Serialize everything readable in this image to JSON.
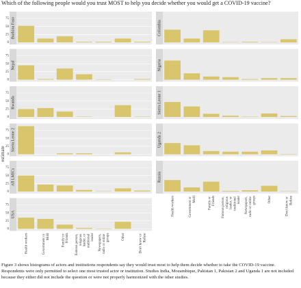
{
  "title": "Which of the following people would you trust MOST to help you decide whether you would get a COVID-19 vaccine?",
  "y_label": "estimate",
  "caption": "Figure 3 shows histograms of actors and institutions respondents say they would trust most to help them decide whether to take the COVID-19 vaccine. Respondents were only permitted to select one most trusted actor or institution. Studies India, Mozambique, Pakistan 1, Pakistan 2 and Uganda 1 are not included because they either did not include the question or were not properly harmonized with the other studies.",
  "chart_data": [
    {
      "type": "bar",
      "title": "Burkina Faso",
      "values": [
        52,
        12,
        19,
        2,
        2,
        12,
        2
      ],
      "color": "#d8c56c",
      "ylim": [
        0,
        90
      ],
      "yticks": [
        0,
        25,
        50,
        75
      ]
    },
    {
      "type": "bar",
      "title": "Colombia",
      "values": [
        40,
        12,
        38,
        1,
        2,
        1,
        10
      ],
      "color": "#d8c56c",
      "ylim": [
        0,
        90
      ]
    },
    {
      "type": "bar",
      "title": "Nepal",
      "values": [
        45,
        2,
        35,
        17,
        1,
        0,
        2
      ],
      "color": "#d8c56c",
      "ylim": [
        0,
        90
      ],
      "yticks": [
        0,
        25,
        50,
        75
      ]
    },
    {
      "type": "bar",
      "title": "Nigeria",
      "values": [
        60,
        20,
        10,
        8,
        2,
        5,
        5
      ],
      "color": "#d8c56c",
      "ylim": [
        0,
        90
      ]
    },
    {
      "type": "bar",
      "title": "Rwanda",
      "values": [
        25,
        28,
        17,
        1,
        0,
        37,
        1
      ],
      "color": "#d8c56c",
      "ylim": [
        0,
        90
      ],
      "yticks": [
        0,
        25,
        50,
        75
      ]
    },
    {
      "type": "bar",
      "title": "Sierra Leone 1",
      "values": [
        47,
        33,
        10,
        4,
        1,
        11,
        3
      ],
      "color": "#d8c56c",
      "ylim": [
        0,
        90
      ]
    },
    {
      "type": "bar",
      "title": "Sierra Leone 2",
      "values": [
        88,
        0,
        3,
        3,
        0,
        6,
        0
      ],
      "color": "#d8c56c",
      "ylim": [
        0,
        90
      ],
      "yticks": [
        0,
        25,
        50,
        75
      ]
    },
    {
      "type": "bar",
      "title": "Uganda 2",
      "values": [
        35,
        28,
        10,
        8,
        8,
        12,
        1
      ],
      "color": "#d8c56c",
      "ylim": [
        0,
        90
      ]
    },
    {
      "type": "bar",
      "title": "All LMICs",
      "values": [
        50,
        22,
        19,
        5,
        1,
        10,
        3
      ],
      "color": "#d8c56c",
      "ylim": [
        0,
        90
      ],
      "yticks": [
        0,
        25,
        50,
        75
      ]
    },
    {
      "type": "bar",
      "title": "Russia",
      "categories": [
        "Health workers",
        "Government or MoH",
        "Family or Friends",
        "Famous person, religious leader, or traditional leader",
        "Newspapers, radio or online groups",
        "Other",
        "Don't know or Refuse"
      ],
      "values": [
        36,
        13,
        31,
        2,
        4,
        18,
        1
      ],
      "color": "#d8c56c",
      "ylim": [
        0,
        90
      ]
    },
    {
      "type": "bar",
      "title": "USA",
      "categories": [
        "Health workers",
        "Government or MoH",
        "Family or Friends",
        "Famous person, religious leader, or traditional leader",
        "Newspapers, radio or online groups",
        "Other",
        "Don't know or Refuse"
      ],
      "values": [
        35,
        31,
        13,
        3,
        1,
        22,
        0
      ],
      "color": "#d8c56c",
      "ylim": [
        0,
        90
      ],
      "yticks": [
        0,
        25,
        50,
        75
      ]
    }
  ]
}
